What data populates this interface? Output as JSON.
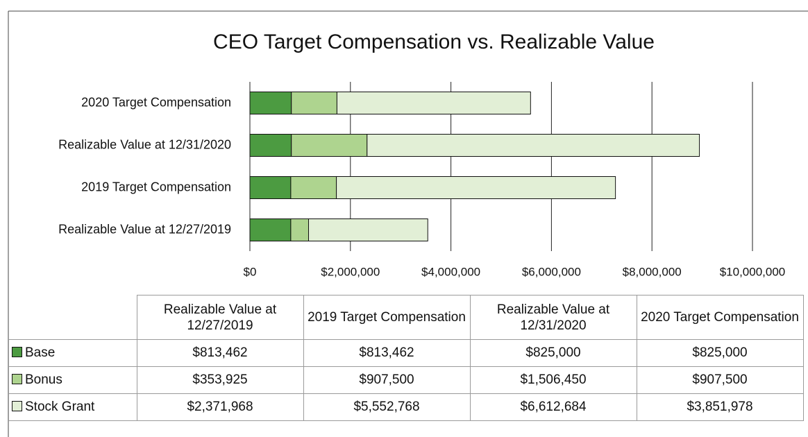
{
  "chart_data": {
    "type": "stacked_bar_horizontal",
    "title": "CEO Target Compensation vs. Realizable Value",
    "categories": [
      "Realizable Value at 12/27/2019",
      "2019 Target Compensation",
      "Realizable Value at 12/31/2020",
      "2020 Target Compensation"
    ],
    "series": [
      {
        "name": "Base",
        "color": "#4c9b41",
        "values": [
          813462,
          813462,
          825000,
          825000
        ],
        "value_labels": [
          "$813,462",
          "$813,462",
          "$825,000",
          "$825,000"
        ]
      },
      {
        "name": "Bonus",
        "color": "#aed48f",
        "values": [
          353925,
          907500,
          1506450,
          907500
        ],
        "value_labels": [
          "$353,925",
          "$907,500",
          "$1,506,450",
          "$907,500"
        ]
      },
      {
        "name": "Stock Grant",
        "color": "#e2efd6",
        "values": [
          2371968,
          5552768,
          6612684,
          3851978
        ],
        "value_labels": [
          "$2,371,968",
          "$5,552,768",
          "$6,612,684",
          "$3,851,978"
        ]
      }
    ],
    "xlim": [
      0,
      10000000
    ],
    "xticks": [
      {
        "value": 0,
        "label": "$0"
      },
      {
        "value": 2000000,
        "label": "$2,000,000"
      },
      {
        "value": 4000000,
        "label": "$4,000,000"
      },
      {
        "value": 6000000,
        "label": "$6,000,000"
      },
      {
        "value": 8000000,
        "label": "$8,000,000"
      },
      {
        "value": 10000000,
        "label": "$10,000,000"
      }
    ],
    "grid": true
  }
}
